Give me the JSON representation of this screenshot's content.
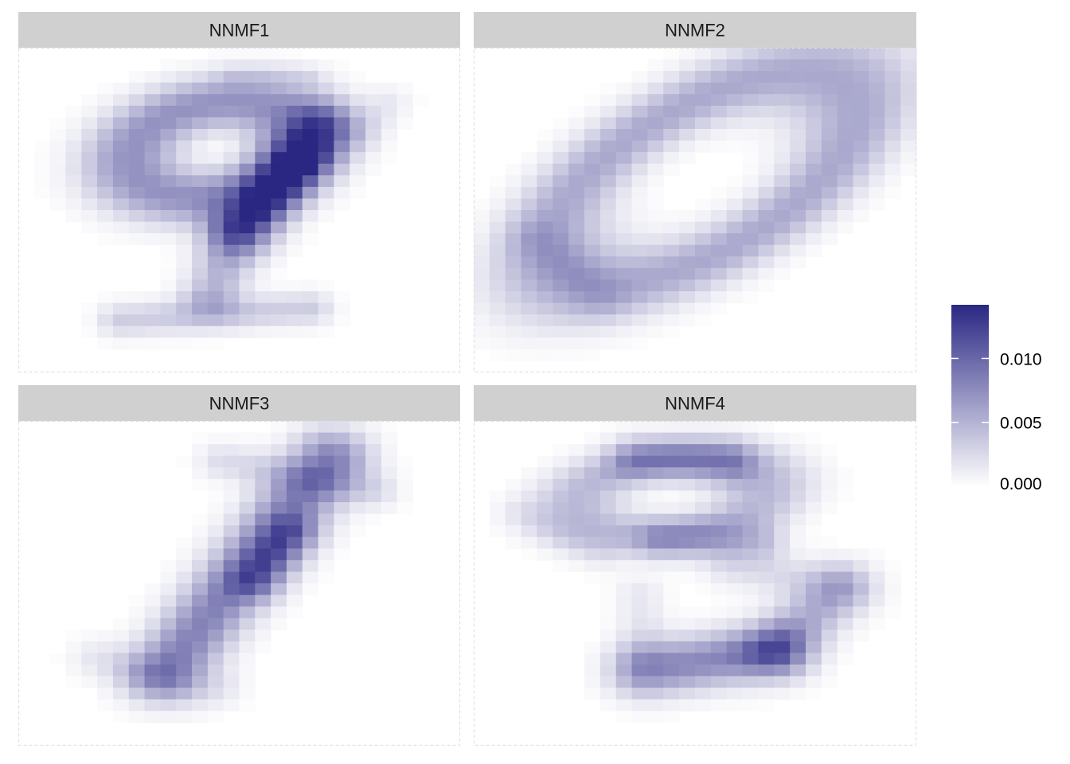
{
  "chart_data": {
    "type": "heatmap",
    "grid": {
      "rows": 28,
      "cols": 28
    },
    "facets": [
      {
        "label": "NNMF1",
        "shape": "nine",
        "strokes": [
          {
            "kind": "ring",
            "cx": 12.5,
            "cy": 8.8,
            "rx": 5.5,
            "ry": 3.9,
            "rot": -18,
            "width": 1.9,
            "amp": 0.0072
          },
          {
            "kind": "line",
            "p": [
              [
                19.2,
                6.8
              ],
              [
                14.1,
                15.8
              ]
            ],
            "width": 1.5,
            "amp": 0.0075
          },
          {
            "kind": "line",
            "p": [
              [
                18.4,
                9.5
              ],
              [
                15.5,
                14.0
              ]
            ],
            "width": 1.2,
            "amp": 0.004
          },
          {
            "kind": "line",
            "p": [
              [
                13.8,
                16.0
              ],
              [
                12.2,
                21.5
              ]
            ],
            "width": 1.3,
            "amp": 0.0048
          },
          {
            "kind": "line",
            "p": [
              [
                6.5,
                23.5
              ],
              [
                18.5,
                22.5
              ]
            ],
            "width": 1.0,
            "amp": 0.0033
          },
          {
            "kind": "line",
            "p": [
              [
                13.5,
                2.5
              ],
              [
                18.5,
                2.5
              ]
            ],
            "width": 0.7,
            "amp": 0.0014
          },
          {
            "kind": "line",
            "p": [
              [
                23.5,
                4.8
              ],
              [
                21.5,
                7.6
              ]
            ],
            "width": 1.0,
            "amp": 0.0014
          }
        ]
      },
      {
        "label": "NNMF2",
        "shape": "zero",
        "strokes": [
          {
            "kind": "ring",
            "cx": 14.5,
            "cy": 11.3,
            "rx": 12.0,
            "ry": 5.7,
            "rot": -42,
            "width": 2.3,
            "amp": 0.0057
          },
          {
            "kind": "line",
            "p": [
              [
                4.0,
                16.5
              ],
              [
                8.0,
                21.5
              ]
            ],
            "width": 1.3,
            "amp": 0.0018
          }
        ]
      },
      {
        "label": "NNMF3",
        "shape": "one",
        "strokes": [
          {
            "kind": "line",
            "p": [
              [
                19.8,
                3.2
              ],
              [
                9.2,
                21.8
              ]
            ],
            "width": 1.7,
            "amp": 0.0082
          },
          {
            "kind": "line",
            "p": [
              [
                17.3,
                9.8
              ],
              [
                15.0,
                13.8
              ]
            ],
            "width": 1.2,
            "amp": 0.0055
          },
          {
            "kind": "line",
            "p": [
              [
                13.0,
                3.5
              ],
              [
                22.5,
                6.0
              ]
            ],
            "width": 1.1,
            "amp": 0.0024
          },
          {
            "kind": "line",
            "p": [
              [
                5.0,
                20.5
              ],
              [
                12.5,
                23.0
              ]
            ],
            "width": 1.2,
            "amp": 0.0016
          }
        ]
      },
      {
        "label": "NNMF4",
        "shape": "three",
        "strokes": [
          {
            "kind": "ring",
            "cx": 12.5,
            "cy": 6.5,
            "rx": 6.0,
            "ry": 3.3,
            "rot": -10,
            "width": 1.6,
            "amp": 0.0046
          },
          {
            "kind": "line",
            "p": [
              [
                10.5,
                3.3
              ],
              [
                16.0,
                3.6
              ]
            ],
            "width": 1.3,
            "amp": 0.0048
          },
          {
            "kind": "line",
            "p": [
              [
                12.0,
                10.2
              ],
              [
                18.0,
                10.4
              ]
            ],
            "width": 1.2,
            "amp": 0.0038
          },
          {
            "kind": "line",
            "p": [
              [
                11.0,
                21.5
              ],
              [
                19.0,
                19.8
              ]
            ],
            "width": 1.6,
            "amp": 0.0078
          },
          {
            "kind": "line",
            "p": [
              [
                19.0,
                19.8
              ],
              [
                23.3,
                14.5
              ]
            ],
            "width": 1.5,
            "amp": 0.005
          },
          {
            "kind": "line",
            "p": [
              [
                16.5,
                12.5
              ],
              [
                22.5,
                14.2
              ]
            ],
            "width": 1.3,
            "amp": 0.0022
          },
          {
            "kind": "line",
            "p": [
              [
                10.5,
                15.0
              ],
              [
                10.8,
                20.0
              ]
            ],
            "width": 1.1,
            "amp": 0.0016
          },
          {
            "kind": "line",
            "p": [
              [
                3.0,
                8.0
              ],
              [
                8.0,
                11.5
              ]
            ],
            "width": 1.0,
            "amp": 0.0012
          }
        ]
      }
    ],
    "color_scale": {
      "low": "#ffffff",
      "high": "#2a2783",
      "limits": [
        0.0,
        0.0142
      ],
      "breaks": [
        0.0,
        0.005,
        0.01
      ],
      "labels": [
        "0.000",
        "0.005",
        "0.010"
      ],
      "title": ""
    },
    "legend_position": "right",
    "grid_visible": false,
    "strip_fill": "#d0d0d0",
    "panel_border": "#e0e0e0"
  }
}
